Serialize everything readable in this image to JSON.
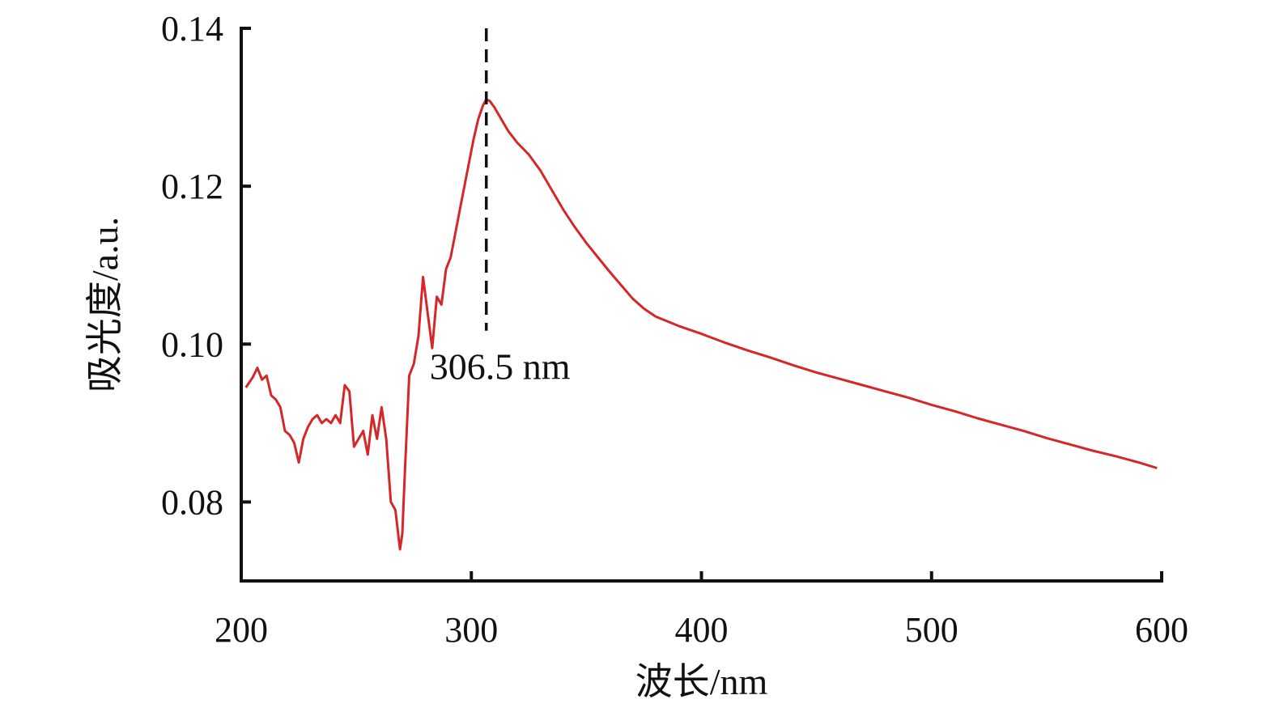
{
  "chart_data": {
    "type": "line",
    "xlabel": "波长/nm",
    "ylabel": "吸光度/a.u.",
    "xlim": [
      200,
      600
    ],
    "ylim": [
      0.07,
      0.14
    ],
    "xticks": [
      200,
      300,
      400,
      500,
      600
    ],
    "xtick_labels": [
      "200",
      "300",
      "400",
      "500",
      "600"
    ],
    "yticks": [
      0.08,
      0.1,
      0.12,
      0.14
    ],
    "ytick_labels": [
      "0.08",
      "0.10",
      "0.12",
      "0.14"
    ],
    "grid": false,
    "series": [
      {
        "color": "#d62728",
        "x": [
          202,
          205,
          207,
          209,
          211,
          213,
          215,
          217,
          219,
          221,
          223,
          225,
          227,
          229,
          231,
          233,
          235,
          237,
          239,
          241,
          243,
          245,
          247,
          249,
          251,
          253,
          255,
          257,
          259,
          261,
          263,
          265,
          267,
          269,
          270,
          271,
          273,
          275,
          277,
          279,
          281,
          283,
          285,
          287,
          289,
          291,
          293,
          295,
          297,
          299,
          301,
          303,
          305,
          306.5,
          308,
          310,
          313,
          316,
          320,
          325,
          330,
          335,
          340,
          345,
          350,
          355,
          360,
          365,
          370,
          375,
          380,
          390,
          400,
          410,
          420,
          430,
          440,
          450,
          460,
          470,
          480,
          490,
          500,
          510,
          520,
          530,
          540,
          550,
          560,
          570,
          580,
          590,
          598
        ],
        "y": [
          0.0945,
          0.0958,
          0.097,
          0.0955,
          0.096,
          0.0935,
          0.093,
          0.092,
          0.089,
          0.0885,
          0.0875,
          0.085,
          0.088,
          0.0895,
          0.0905,
          0.091,
          0.09,
          0.0905,
          0.09,
          0.091,
          0.09,
          0.0948,
          0.094,
          0.087,
          0.088,
          0.089,
          0.086,
          0.091,
          0.088,
          0.092,
          0.088,
          0.08,
          0.079,
          0.074,
          0.076,
          0.083,
          0.096,
          0.0975,
          0.101,
          0.1085,
          0.104,
          0.0995,
          0.106,
          0.105,
          0.1095,
          0.111,
          0.114,
          0.117,
          0.12,
          0.123,
          0.126,
          0.1285,
          0.1302,
          0.131,
          0.1308,
          0.13,
          0.1285,
          0.127,
          0.1255,
          0.124,
          0.122,
          0.1195,
          0.117,
          0.1148,
          0.1128,
          0.111,
          0.1092,
          0.1075,
          0.1058,
          0.1045,
          0.1035,
          0.1023,
          0.1013,
          0.1002,
          0.0992,
          0.0983,
          0.0973,
          0.0964,
          0.0956,
          0.0948,
          0.094,
          0.0932,
          0.0923,
          0.0915,
          0.0906,
          0.0898,
          0.089,
          0.0881,
          0.0873,
          0.0865,
          0.0858,
          0.085,
          0.0843
        ]
      }
    ],
    "annotations": [
      {
        "text": "306.5 nm",
        "x": 306.5,
        "line_from_y": 0.1017,
        "line_to_y": 0.14
      }
    ]
  }
}
